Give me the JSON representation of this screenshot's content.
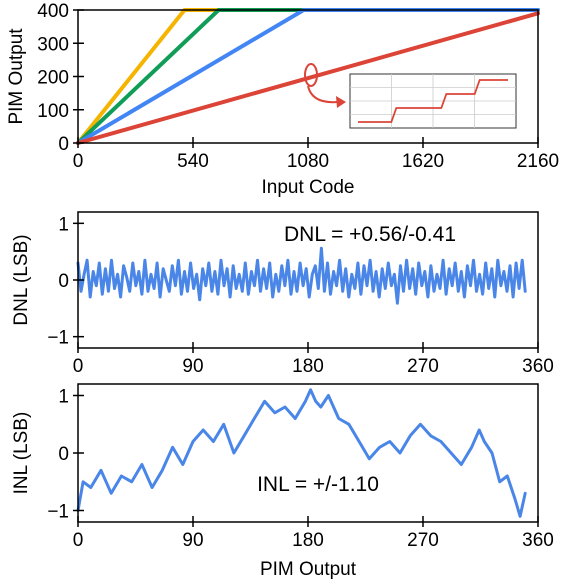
{
  "chart_data": [
    {
      "id": "transfer",
      "type": "line",
      "xlabel": "Input Code",
      "ylabel": "PIM Output",
      "xlim": [
        0,
        2160
      ],
      "ylim": [
        0,
        400
      ],
      "xticks": [
        0,
        540,
        1080,
        1620,
        2160
      ],
      "yticks": [
        0,
        100,
        200,
        300,
        400
      ],
      "grid": false,
      "series": [
        {
          "color": "#F4B400",
          "x": [
            0,
            500,
            2160
          ],
          "y": [
            0,
            400,
            400
          ]
        },
        {
          "color": "#0F9D58",
          "x": [
            0,
            660,
            2160
          ],
          "y": [
            0,
            400,
            400
          ]
        },
        {
          "color": "#4285F4",
          "x": [
            0,
            1060,
            2160
          ],
          "y": [
            0,
            400,
            400
          ]
        },
        {
          "color": "#DB4437",
          "x": [
            0,
            2160
          ],
          "y": [
            0,
            390
          ]
        }
      ],
      "inset": {
        "type": "step",
        "color": "#DB4437",
        "grid": true,
        "x": [
          0,
          1,
          2,
          3,
          4,
          5,
          6,
          7,
          8,
          9
        ],
        "y": [
          0,
          0,
          1,
          1,
          1,
          2,
          2,
          3,
          3,
          3
        ]
      }
    },
    {
      "id": "dnl",
      "type": "line",
      "xlabel": "",
      "ylabel": "DNL (LSB)",
      "xlim": [
        0,
        360
      ],
      "ylim": [
        -1.2,
        1.2
      ],
      "xticks": [
        0,
        90,
        180,
        270,
        360
      ],
      "yticks": [
        -1,
        0,
        1
      ],
      "annotation": "DNL = +0.56/-0.41",
      "series": [
        {
          "color": "#4A86E8",
          "x_start": 0,
          "x_end": 350,
          "y": [
            0.3,
            -0.2,
            0.1,
            0.35,
            -0.3,
            0.15,
            -0.1,
            0.3,
            -0.25,
            0.2,
            -0.2,
            0.35,
            -0.15,
            0.1,
            -0.3,
            0.25,
            0.05,
            -0.2,
            0.3,
            -0.1,
            0.15,
            -0.25,
            0.35,
            -0.2,
            0.1,
            -0.15,
            0.3,
            -0.3,
            0.2,
            0.0,
            -0.2,
            0.25,
            -0.1,
            0.35,
            -0.25,
            0.15,
            -0.2,
            0.3,
            -0.15,
            0.1,
            -0.35,
            0.2,
            -0.1,
            0.3,
            -0.2,
            0.15,
            -0.25,
            0.35,
            -0.1,
            0.2,
            -0.3,
            0.25,
            -0.15,
            0.1,
            -0.2,
            0.3,
            -0.25,
            0.15,
            -0.1,
            0.35,
            -0.2,
            0.2,
            -0.15,
            0.3,
            -0.3,
            0.1,
            -0.2,
            0.25,
            -0.1,
            0.35,
            -0.25,
            0.15,
            -0.2,
            0.3,
            -0.1,
            0.2,
            -0.3,
            0.1,
            0.25,
            -0.15,
            0.56,
            -0.2,
            0.3,
            -0.25,
            0.15,
            -0.1,
            0.35,
            -0.2,
            0.2,
            -0.3,
            0.1,
            -0.15,
            0.3,
            -0.25,
            0.25,
            -0.1,
            0.35,
            -0.2,
            0.15,
            -0.3,
            0.2,
            -0.15,
            0.3,
            -0.1,
            0.1,
            -0.41,
            0.25,
            -0.2,
            0.35,
            -0.15,
            0.2,
            -0.25,
            0.3,
            -0.1,
            0.15,
            -0.3,
            0.25,
            -0.2,
            0.1,
            -0.15,
            0.35,
            -0.25,
            0.2,
            -0.1,
            0.3,
            -0.2,
            0.15,
            -0.3,
            0.25,
            -0.1,
            0.35,
            -0.2,
            0.1,
            -0.25,
            0.3,
            -0.15,
            0.2,
            -0.3,
            0.35,
            -0.1,
            0.15,
            -0.2,
            0.25,
            -0.3,
            0.3,
            -0.15,
            0.35,
            -0.2
          ]
        }
      ]
    },
    {
      "id": "inl",
      "type": "line",
      "xlabel": "PIM Output",
      "ylabel": "INL (LSB)",
      "xlim": [
        0,
        360
      ],
      "ylim": [
        -1.2,
        1.2
      ],
      "xticks": [
        0,
        90,
        180,
        270,
        360
      ],
      "yticks": [
        -1,
        0,
        1
      ],
      "annotation": "INL = +/-1.10",
      "series": [
        {
          "color": "#4A86E8",
          "x": [
            0,
            4,
            10,
            18,
            26,
            34,
            42,
            50,
            58,
            66,
            74,
            82,
            90,
            98,
            106,
            114,
            122,
            130,
            138,
            146,
            154,
            162,
            170,
            178,
            182,
            186,
            190,
            196,
            204,
            212,
            220,
            228,
            236,
            244,
            252,
            260,
            268,
            276,
            284,
            292,
            300,
            308,
            314,
            318,
            324,
            330,
            336,
            342,
            346,
            350
          ],
          "y": [
            -1.0,
            -0.5,
            -0.6,
            -0.3,
            -0.7,
            -0.4,
            -0.5,
            -0.2,
            -0.6,
            -0.3,
            0.1,
            -0.2,
            0.2,
            0.4,
            0.2,
            0.5,
            0.0,
            0.3,
            0.6,
            0.9,
            0.7,
            0.8,
            0.6,
            0.9,
            1.1,
            0.9,
            0.8,
            1.0,
            0.6,
            0.5,
            0.2,
            -0.1,
            0.1,
            0.2,
            0.0,
            0.3,
            0.5,
            0.3,
            0.2,
            0.0,
            -0.2,
            0.1,
            0.4,
            0.2,
            0.0,
            -0.5,
            -0.4,
            -0.8,
            -1.1,
            -0.7
          ]
        }
      ]
    }
  ]
}
